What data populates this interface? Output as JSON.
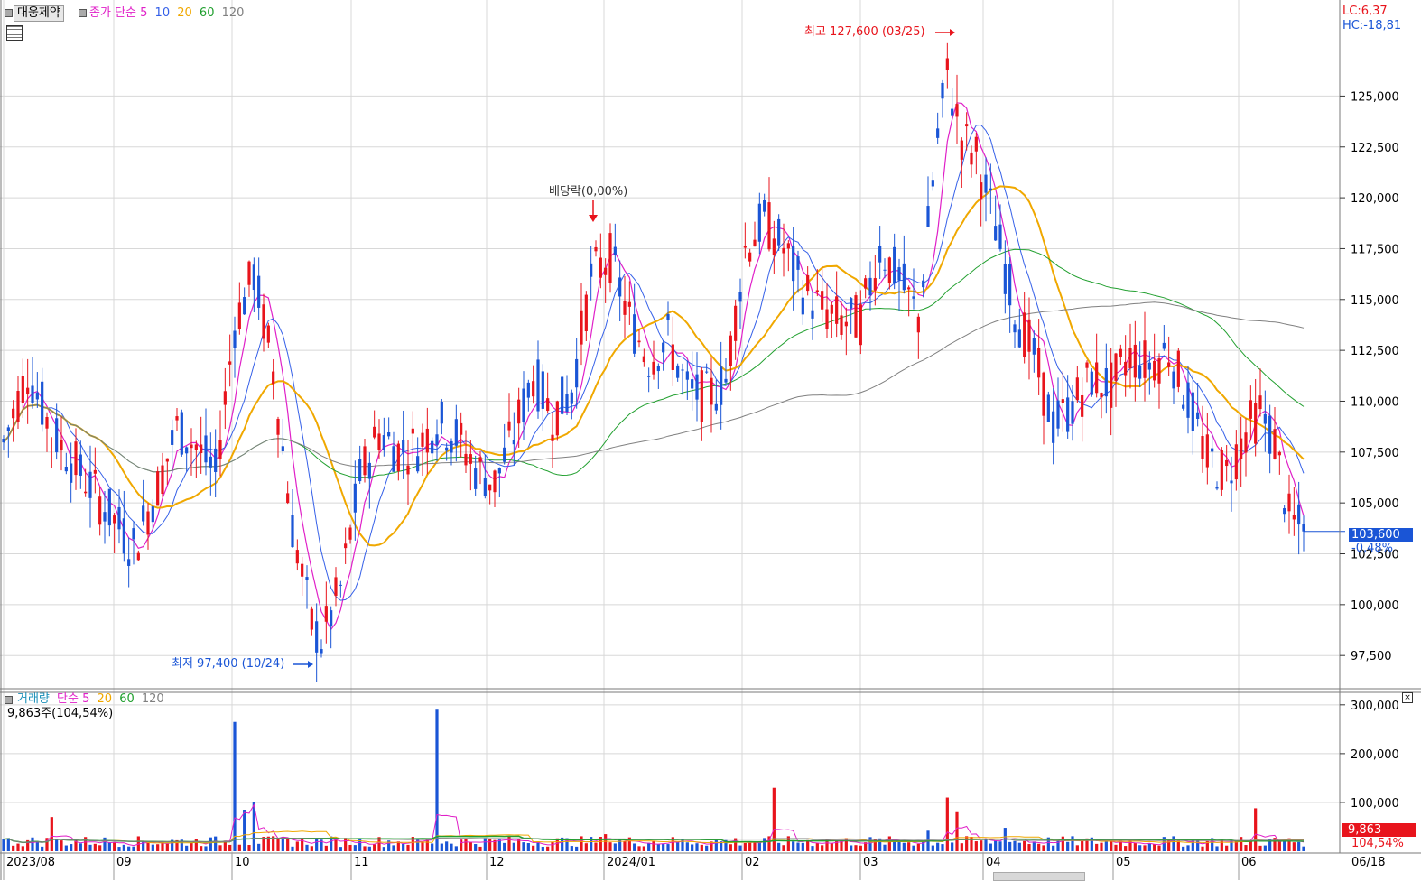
{
  "header": {
    "stock_name": "대웅제약",
    "price_line": {
      "label": "종가",
      "method": "단순",
      "periods": [
        "5",
        "10",
        "20",
        "60",
        "120"
      ]
    },
    "top_right": {
      "lc": "LC:6,37",
      "hc": "HC:-18,81"
    }
  },
  "annotations": {
    "high": "최고 127,600 (03/25)",
    "low": "최저 97,400 (10/24)",
    "dividend": "배당락(0,00%)"
  },
  "current": {
    "price": "103,600",
    "change": "-0,48%"
  },
  "volume_panel": {
    "label": "거래량",
    "method": "단순",
    "periods": [
      "5",
      "20",
      "60",
      "120"
    ],
    "info": "9,863주(104,54%)",
    "current": "9,863",
    "pct": "104,54%"
  },
  "x_axis": {
    "labels": [
      "2023/08",
      "09",
      "10",
      "11",
      "12",
      "2024/01",
      "02",
      "03",
      "04",
      "05",
      "06"
    ],
    "last_date": "06/18"
  },
  "colors": {
    "up": "#e8141c",
    "down": "#1a55d6",
    "ma5": "#e020c8",
    "ma10": "#3560e8",
    "ma20": "#f0a800",
    "ma60": "#22a030",
    "ma120": "#808080"
  },
  "chart_data": [
    {
      "type": "candlestick",
      "y_ticks": [
        "125,000",
        "122,500",
        "120,000",
        "117,500",
        "115,000",
        "112,500",
        "110,000",
        "107,500",
        "105,000",
        "102,500",
        "100,000",
        "97,500"
      ],
      "ylim": [
        96000,
        129500
      ],
      "high": 127600,
      "low": 97400,
      "last": 103600
    },
    {
      "type": "bar",
      "title": "거래량",
      "y_ticks": [
        "300,000",
        "200,000",
        "100,000"
      ],
      "ylim": [
        0,
        320000
      ]
    }
  ]
}
